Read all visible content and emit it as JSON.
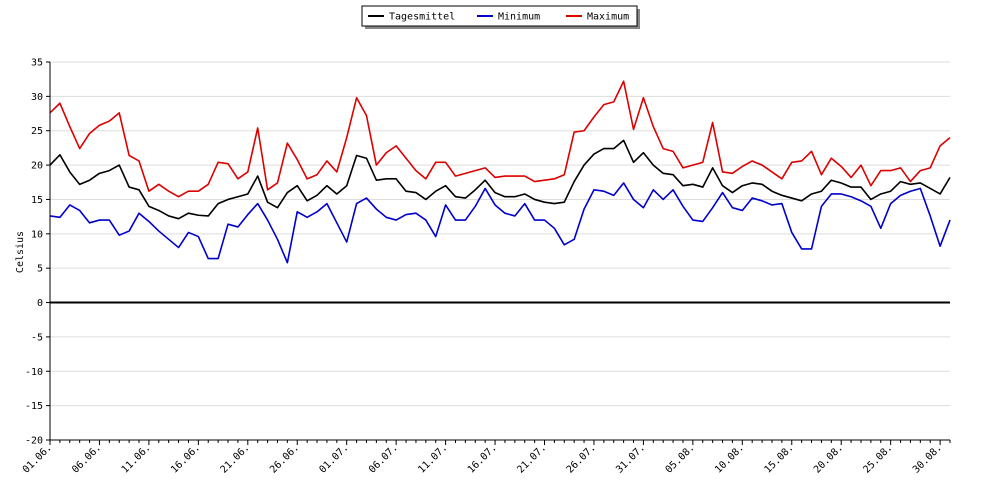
{
  "chart_data": {
    "type": "line",
    "title": "",
    "xlabel": "",
    "ylabel": "Celsius",
    "ylim": [
      -20,
      35
    ],
    "yticks": [
      35,
      30,
      25,
      20,
      15,
      10,
      5,
      0,
      -5,
      -10,
      -15,
      -20
    ],
    "grid": "horizontal",
    "legend_position": "top-center",
    "start_date": "2023-06-01",
    "xtick_labels": [
      "01.06.",
      "06.06.",
      "11.06.",
      "16.06.",
      "21.06.",
      "26.06.",
      "01.07.",
      "06.07.",
      "11.07.",
      "16.07.",
      "21.07.",
      "26.07.",
      "31.07.",
      "05.08.",
      "10.08.",
      "15.08.",
      "20.08.",
      "25.08.",
      "30.08."
    ],
    "series": [
      {
        "name": "Tagesmittel",
        "color": "#000000",
        "values": [
          20.0,
          21.5,
          19.0,
          17.2,
          17.8,
          18.8,
          19.2,
          20.0,
          16.8,
          16.4,
          14.0,
          13.4,
          12.6,
          12.2,
          13.0,
          12.7,
          12.6,
          14.4,
          15.0,
          15.4,
          15.8,
          18.4,
          14.6,
          13.8,
          16.0,
          17.0,
          14.8,
          15.6,
          17.0,
          15.8,
          17.0,
          21.4,
          21.0,
          17.8,
          18.0,
          18.0,
          16.2,
          16.0,
          15.0,
          16.2,
          17.0,
          15.4,
          15.2,
          16.4,
          17.8,
          16.0,
          15.4,
          15.4,
          15.8,
          15.0,
          14.6,
          14.4,
          14.6,
          17.6,
          20.0,
          21.6,
          22.4,
          22.4,
          23.6,
          20.4,
          21.8,
          20.0,
          18.8,
          18.6,
          17.0,
          17.2,
          16.8,
          19.6,
          17.0,
          16.0,
          17.0,
          17.4,
          17.2,
          16.2,
          15.6,
          15.2,
          14.8,
          15.8,
          16.2,
          17.8,
          17.4,
          16.8,
          16.8,
          15.0,
          15.8,
          16.2,
          17.6,
          17.2,
          17.4,
          16.6,
          15.8,
          18.2
        ]
      },
      {
        "name": "Minimum",
        "color": "#0000cc",
        "values": [
          12.6,
          12.4,
          14.2,
          13.4,
          11.6,
          12.0,
          12.0,
          9.8,
          10.4,
          13.0,
          11.8,
          10.4,
          9.2,
          8.0,
          10.2,
          9.6,
          6.4,
          6.4,
          11.4,
          11.0,
          12.8,
          14.4,
          12.0,
          9.2,
          5.8,
          13.2,
          12.4,
          13.2,
          14.4,
          11.6,
          8.8,
          14.4,
          15.2,
          13.6,
          12.4,
          12.0,
          12.8,
          13.0,
          12.0,
          9.6,
          14.2,
          12.0,
          12.0,
          14.0,
          16.6,
          14.2,
          13.0,
          12.6,
          14.4,
          12.0,
          12.0,
          10.8,
          8.4,
          9.2,
          13.6,
          16.4,
          16.2,
          15.6,
          17.4,
          15.0,
          13.8,
          16.4,
          15.0,
          16.4,
          14.0,
          12.0,
          11.8,
          13.8,
          16.0,
          13.8,
          13.4,
          15.2,
          14.8,
          14.2,
          14.4,
          10.2,
          7.8,
          7.8,
          14.0,
          15.8,
          15.8,
          15.4,
          14.8,
          14.0,
          10.8,
          14.4,
          15.6,
          16.2,
          16.6,
          12.6,
          8.2,
          12.0
        ]
      },
      {
        "name": "Maximum",
        "color": "#dd0000",
        "values": [
          27.6,
          29.0,
          25.6,
          22.4,
          24.6,
          25.8,
          26.4,
          27.6,
          21.4,
          20.6,
          16.2,
          17.2,
          16.2,
          15.4,
          16.2,
          16.2,
          17.2,
          20.4,
          20.2,
          18.0,
          19.0,
          25.4,
          16.4,
          17.4,
          23.2,
          20.8,
          18.0,
          18.6,
          20.6,
          19.0,
          24.0,
          29.8,
          27.2,
          20.0,
          21.8,
          22.8,
          21.0,
          19.2,
          18.0,
          20.4,
          20.4,
          18.4,
          18.8,
          19.2,
          19.6,
          18.2,
          18.4,
          18.4,
          18.4,
          17.6,
          17.8,
          18.0,
          18.6,
          24.8,
          25.0,
          27.0,
          28.8,
          29.2,
          32.2,
          25.2,
          29.8,
          25.6,
          22.4,
          22.0,
          19.6,
          20.0,
          20.4,
          26.2,
          19.0,
          18.8,
          19.8,
          20.6,
          20.0,
          19.0,
          18.0,
          20.4,
          20.6,
          22.0,
          18.6,
          21.0,
          19.8,
          18.2,
          20.0,
          17.0,
          19.2,
          19.2,
          19.6,
          17.6,
          19.2,
          19.6,
          22.8,
          24.0
        ]
      }
    ]
  }
}
